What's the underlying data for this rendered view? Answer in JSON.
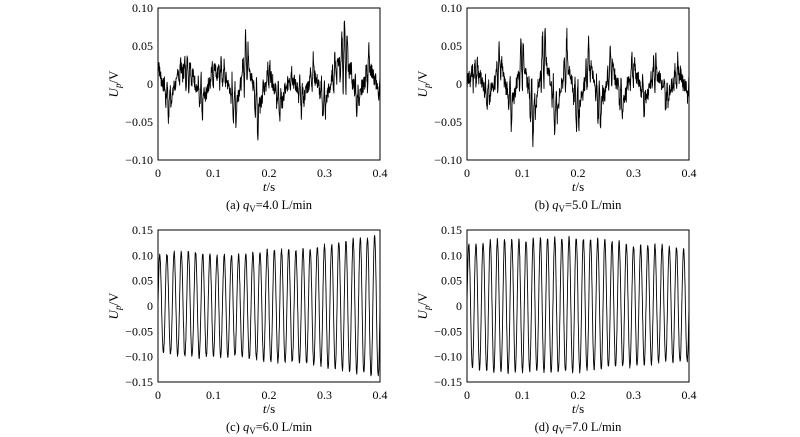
{
  "figure": {
    "panels": [
      {
        "caption_prefix": "(a) ",
        "caption_var": "q",
        "caption_sub": "V",
        "caption_value": "=4.0 L/min",
        "ylabel_var": "U",
        "ylabel_sub": "p",
        "ylabel_unit": "/V",
        "xlabel": "t",
        "xlabel_unit": "/s",
        "xticks": [
          "0",
          "0.1",
          "0.2",
          "0.3",
          "0.4"
        ],
        "yticks": [
          "0.10",
          "0.05",
          "0",
          "−0.05",
          "−0.10"
        ]
      },
      {
        "caption_prefix": "(b) ",
        "caption_var": "q",
        "caption_sub": "V",
        "caption_value": "=5.0 L/min",
        "ylabel_var": "U",
        "ylabel_sub": "p",
        "ylabel_unit": "/V",
        "xlabel": "t",
        "xlabel_unit": "/s",
        "xticks": [
          "0",
          "0.1",
          "0.2",
          "0.3",
          "0.4"
        ],
        "yticks": [
          "0.10",
          "0.05",
          "0",
          "−0.05",
          "−0.10"
        ]
      },
      {
        "caption_prefix": "(c) ",
        "caption_var": "q",
        "caption_sub": "V",
        "caption_value": "=6.0 L/min",
        "ylabel_var": "U",
        "ylabel_sub": "p",
        "ylabel_unit": "/V",
        "xlabel": "t",
        "xlabel_unit": "/s",
        "xticks": [
          "0",
          "0.1",
          "0.2",
          "0.3",
          "0.4"
        ],
        "yticks": [
          "0.15",
          "0.10",
          "0.05",
          "0",
          "−0.05",
          "−0.10",
          "−0.15"
        ]
      },
      {
        "caption_prefix": "(d) ",
        "caption_var": "q",
        "caption_sub": "V",
        "caption_value": "=7.0 L/min",
        "ylabel_var": "U",
        "ylabel_sub": "p",
        "ylabel_unit": "/V",
        "xlabel": "t",
        "xlabel_unit": "/s",
        "xticks": [
          "0",
          "0.1",
          "0.2",
          "0.3",
          "0.4"
        ],
        "yticks": [
          "0.15",
          "0.10",
          "0.05",
          "0",
          "−0.05",
          "−0.10",
          "−0.15"
        ]
      }
    ]
  },
  "chart_data": [
    {
      "type": "line",
      "xlim": [
        0,
        0.4
      ],
      "ylim": [
        -0.1,
        0.1
      ],
      "x": [
        0.0,
        0.02,
        0.04,
        0.06,
        0.08,
        0.1,
        0.12,
        0.14,
        0.16,
        0.18,
        0.2,
        0.22,
        0.24,
        0.26,
        0.28,
        0.3,
        0.32,
        0.34,
        0.36,
        0.38,
        0.4
      ],
      "y": [
        0.035,
        -0.04,
        0.03,
        0.025,
        -0.04,
        0.03,
        0.02,
        -0.05,
        0.065,
        -0.06,
        0.03,
        -0.045,
        0.02,
        -0.035,
        0.03,
        -0.045,
        0.035,
        0.065,
        -0.04,
        0.04,
        -0.02
      ],
      "grid": false
    },
    {
      "type": "line",
      "xlim": [
        0,
        0.4
      ],
      "ylim": [
        -0.1,
        0.1
      ],
      "x": [
        0.0,
        0.02,
        0.04,
        0.06,
        0.08,
        0.1,
        0.12,
        0.14,
        0.16,
        0.18,
        0.2,
        0.22,
        0.24,
        0.26,
        0.28,
        0.3,
        0.32,
        0.34,
        0.36,
        0.38,
        0.4
      ],
      "y": [
        0.01,
        0.025,
        -0.03,
        0.045,
        -0.05,
        0.06,
        -0.07,
        0.075,
        -0.065,
        0.055,
        -0.06,
        0.05,
        -0.055,
        0.045,
        -0.045,
        0.04,
        -0.035,
        0.035,
        -0.03,
        0.03,
        -0.02
      ],
      "grid": false
    },
    {
      "type": "line",
      "xlim": [
        0,
        0.4
      ],
      "ylim": [
        -0.15,
        0.15
      ],
      "x": [
        0.0,
        0.05,
        0.1,
        0.15,
        0.2,
        0.25,
        0.3,
        0.35,
        0.4
      ],
      "y_envelope_upper": [
        0.1,
        0.11,
        0.1,
        0.1,
        0.11,
        0.11,
        0.12,
        0.13,
        0.14
      ],
      "y_envelope_lower": [
        -0.09,
        -0.1,
        -0.1,
        -0.1,
        -0.11,
        -0.11,
        -0.12,
        -0.13,
        -0.14
      ],
      "oscillation_cycles": 31,
      "grid": false
    },
    {
      "type": "line",
      "xlim": [
        0,
        0.4
      ],
      "ylim": [
        -0.15,
        0.15
      ],
      "x": [
        0.0,
        0.05,
        0.1,
        0.15,
        0.2,
        0.25,
        0.3,
        0.35,
        0.4
      ],
      "y_envelope_upper": [
        0.12,
        0.13,
        0.13,
        0.135,
        0.135,
        0.13,
        0.12,
        0.12,
        0.11
      ],
      "y_envelope_lower": [
        -0.12,
        -0.13,
        -0.13,
        -0.13,
        -0.13,
        -0.12,
        -0.12,
        -0.11,
        -0.11
      ],
      "oscillation_cycles": 31,
      "grid": false
    }
  ]
}
